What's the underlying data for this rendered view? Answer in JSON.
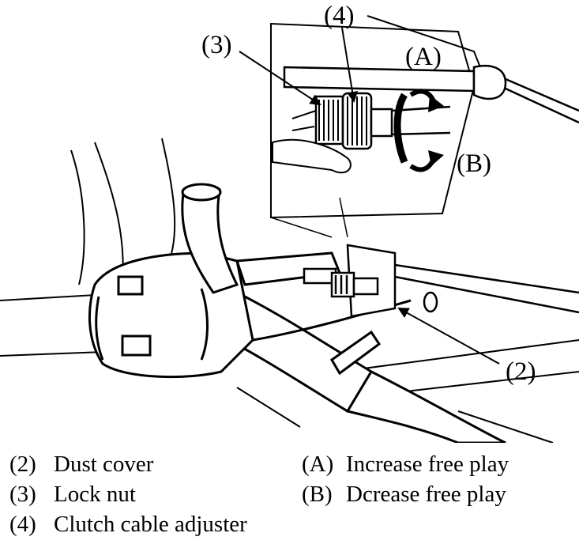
{
  "callouts": {
    "c2": "(2)",
    "c3": "(3)",
    "c4": "(4)",
    "cA": "(A)",
    "cB": "(B)"
  },
  "legend": {
    "items": [
      {
        "code": "(2)",
        "text": "Dust cover"
      },
      {
        "code": "(3)",
        "text": "Lock nut"
      },
      {
        "code": "(4)",
        "text": "Clutch cable adjuster"
      },
      {
        "code": "(A)",
        "text": "Increase free play"
      },
      {
        "code": "(B)",
        "text": "Dcrease free play"
      }
    ]
  }
}
